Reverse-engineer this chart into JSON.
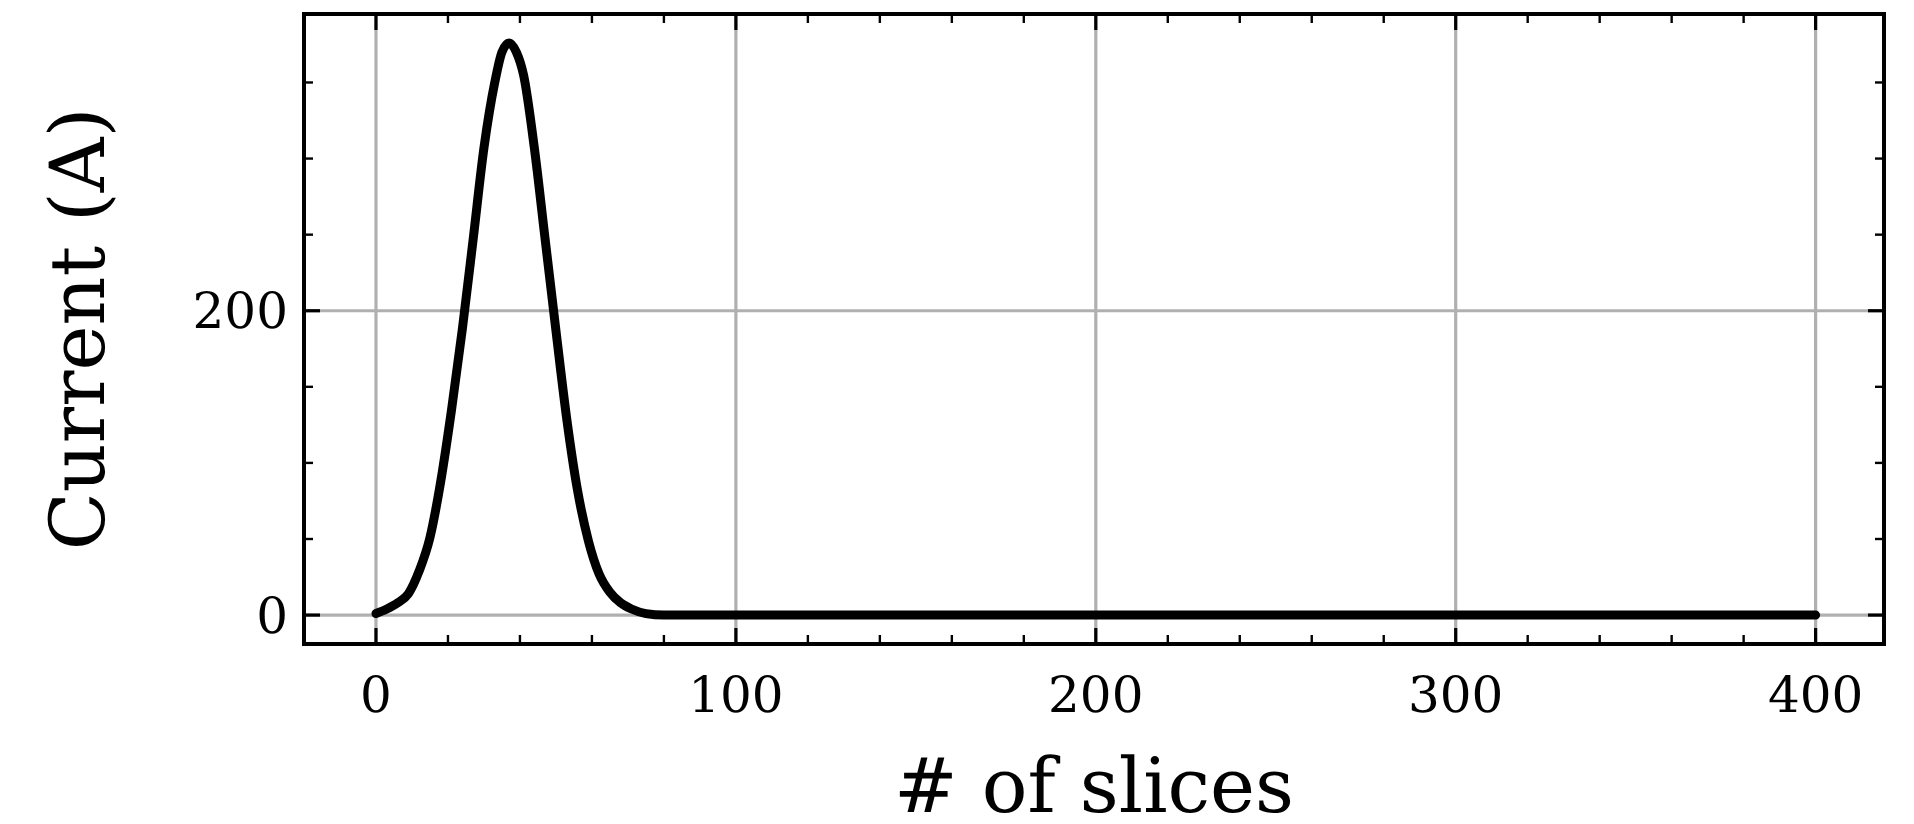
{
  "chart_data": {
    "type": "line",
    "xlabel": "# of slices",
    "ylabel": "Current (A)",
    "x": [
      0,
      3,
      6,
      9,
      12,
      15,
      18,
      21,
      24,
      27,
      30,
      33,
      35,
      37,
      39,
      41,
      44,
      47,
      50,
      53,
      56,
      59,
      62,
      65,
      68,
      71,
      75,
      80,
      400
    ],
    "series": [
      {
        "color": "#000000",
        "values": [
          1,
          4,
          8,
          14,
          29,
          51,
          88,
          135,
          188,
          247,
          307,
          350,
          370,
          376,
          370,
          355,
          307,
          247,
          187,
          129,
          82,
          49,
          27,
          15,
          8,
          4,
          1,
          0,
          0
        ]
      }
    ],
    "xlim": [
      -20,
      419
    ],
    "ylim": [
      -19,
      395
    ],
    "xticks": [
      0,
      100,
      200,
      300,
      400
    ],
    "yticks": [
      0,
      200
    ],
    "grid": true,
    "marker": "none",
    "line_style": "solid"
  }
}
